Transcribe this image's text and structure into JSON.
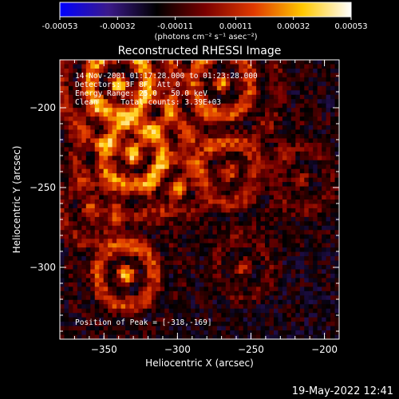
{
  "chart_data": {
    "type": "heatmap",
    "title": "Reconstructed RHESSI Image",
    "xlabel": "Heliocentric X (arcsec)",
    "ylabel": "Heliocentric Y (arcsec)",
    "xlim": [
      -380,
      -190
    ],
    "ylim": [
      -345,
      -170
    ],
    "x_ticks": [
      -350,
      -300,
      -250,
      -200
    ],
    "y_ticks": [
      -200,
      -250,
      -300
    ],
    "colorbar": {
      "min": -0.00053,
      "max": 0.00053,
      "tick_labels": [
        "-0.00053",
        "-0.00032",
        "-0.00011",
        "0.00011",
        "0.00032",
        "0.00053"
      ],
      "unit_label": "(photons cm⁻² s⁻¹ asec⁻²)",
      "colormap": [
        "#0000ff",
        "#3b1a8a",
        "#000000",
        "#7a0000",
        "#e03a00",
        "#ffc800",
        "#ffffff"
      ]
    },
    "annotations": [
      "14-Nov-2001 01:17:28.000 to 01:23:28.000",
      "Detectors: 3F 8F, Att_0",
      "Energy Range: 25.0 - 50.0 keV",
      "Clean     Total counts: 3.39E+03"
    ],
    "peak_label": "Position of Peak = [-318,-169]",
    "peak": [
      -318,
      -169
    ]
  },
  "timestamp": "19-May-2022 12:41"
}
